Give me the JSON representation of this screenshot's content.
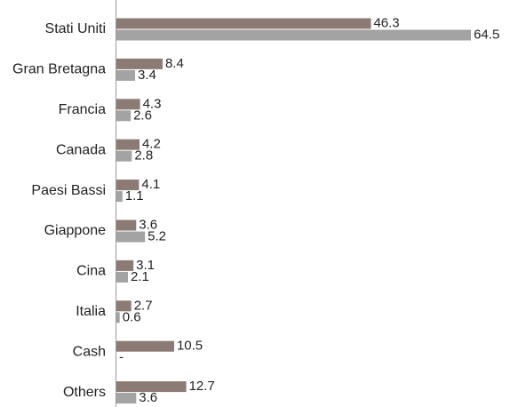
{
  "chart_data": {
    "type": "bar",
    "orientation": "horizontal",
    "categories": [
      "Stati Uniti",
      "Gran Bretagna",
      "Francia",
      "Canada",
      "Paesi Bassi",
      "Giappone",
      "Cina",
      "Italia",
      "Cash",
      "Others"
    ],
    "series": [
      {
        "values": [
          46.3,
          8.4,
          4.3,
          4.2,
          4.1,
          3.6,
          3.1,
          2.7,
          10.5,
          12.7
        ],
        "labels": [
          "46.3",
          "8.4",
          "4.3",
          "4.2",
          "4.1",
          "3.6",
          "3.1",
          "2.7",
          "10.5",
          "12.7"
        ],
        "color": "#8c7b74"
      },
      {
        "values": [
          64.5,
          3.4,
          2.6,
          2.8,
          1.1,
          5.2,
          2.1,
          0.6,
          0,
          3.6
        ],
        "labels": [
          "64.5",
          "3.4",
          "2.6",
          "2.8",
          "1.1",
          "5.2",
          "2.1",
          "0.6",
          "-",
          "3.6"
        ],
        "color": "#a3a3a3"
      }
    ],
    "xlim": [
      0,
      66
    ],
    "grid": false,
    "legend": "none"
  }
}
